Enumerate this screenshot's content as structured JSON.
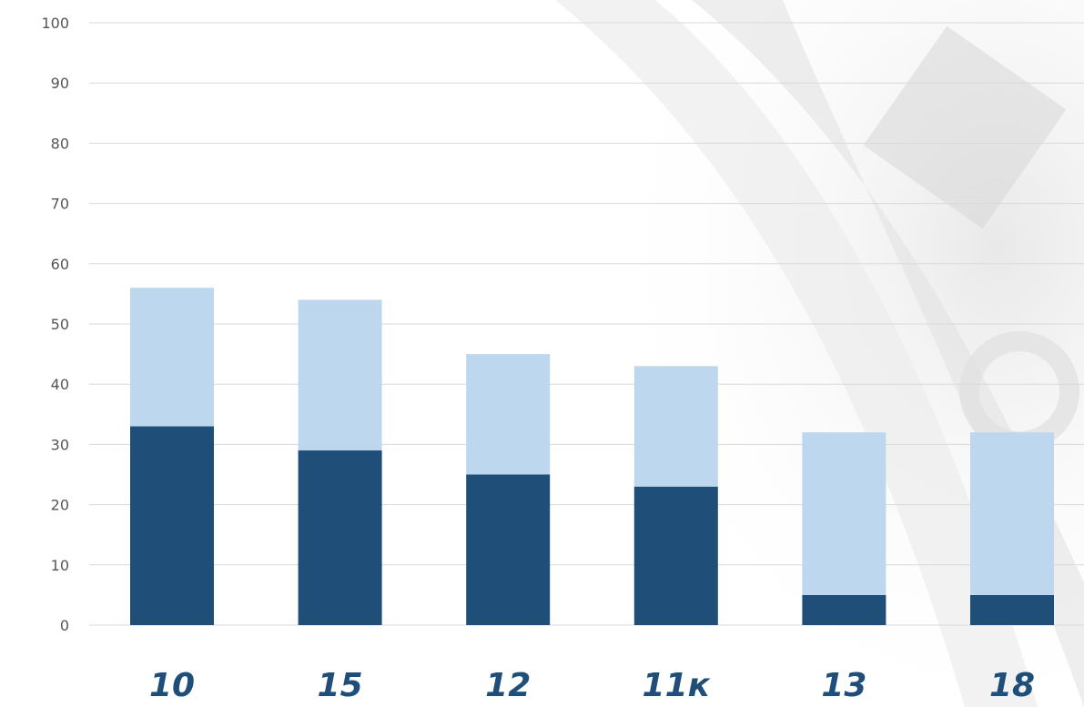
{
  "chart_data": {
    "type": "bar",
    "stacked": true,
    "categories": [
      "10",
      "15",
      "12",
      "11к",
      "13",
      "18"
    ],
    "series": [
      {
        "values": [
          33,
          29,
          25,
          23,
          5,
          5
        ],
        "color": "#1f4e79"
      },
      {
        "values": [
          23,
          25,
          20,
          20,
          27,
          27
        ],
        "color": "#bdd7ee"
      }
    ],
    "ylim": [
      0,
      100
    ],
    "yticks": [
      "0",
      "10",
      "20",
      "30",
      "40",
      "50",
      "60",
      "70",
      "80",
      "90",
      "100"
    ],
    "grid": true,
    "legend": "none"
  }
}
